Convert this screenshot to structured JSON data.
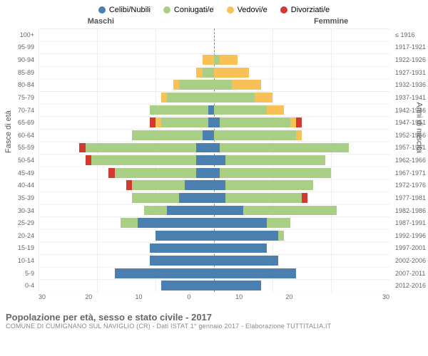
{
  "legend": [
    {
      "label": "Celibi/Nubili",
      "color": "#4a7fb0"
    },
    {
      "label": "Coniugati/e",
      "color": "#a9cf87"
    },
    {
      "label": "Vedovi/e",
      "color": "#f7c157"
    },
    {
      "label": "Divorziati/e",
      "color": "#d33a2f"
    }
  ],
  "gender_labels": {
    "male": "Maschi",
    "female": "Femmine"
  },
  "axis_titles": {
    "left": "Fasce di età",
    "right": "Anni di nascita"
  },
  "x": {
    "max": 30,
    "ticks": [
      "30",
      "20",
      "10",
      "0",
      "10",
      "20",
      "30"
    ]
  },
  "title": "Popolazione per età, sesso e stato civile - 2017",
  "subtitle": "COMUNE DI CUMIGNANO SUL NAVIGLIO (CR) - Dati ISTAT 1° gennaio 2017 - Elaborazione TUTTITALIA.IT",
  "colors": {
    "grid": "#eee",
    "centerline": "#888",
    "text": "#666",
    "bg": "#ffffff"
  },
  "rows": [
    {
      "age": "100+",
      "birth": "≤ 1916",
      "m": {
        "c": 0,
        "co": 0,
        "v": 0,
        "d": 0
      },
      "f": {
        "c": 0,
        "co": 0,
        "v": 0,
        "d": 0
      }
    },
    {
      "age": "95-99",
      "birth": "1917-1921",
      "m": {
        "c": 0,
        "co": 0,
        "v": 0,
        "d": 0
      },
      "f": {
        "c": 0,
        "co": 0,
        "v": 0,
        "d": 0
      }
    },
    {
      "age": "90-94",
      "birth": "1922-1926",
      "m": {
        "c": 0,
        "co": 0,
        "v": 2,
        "d": 0
      },
      "f": {
        "c": 0,
        "co": 1,
        "v": 3,
        "d": 0
      }
    },
    {
      "age": "85-89",
      "birth": "1927-1931",
      "m": {
        "c": 0,
        "co": 2,
        "v": 1,
        "d": 0
      },
      "f": {
        "c": 0,
        "co": 0,
        "v": 6,
        "d": 0
      }
    },
    {
      "age": "80-84",
      "birth": "1932-1936",
      "m": {
        "c": 0,
        "co": 6,
        "v": 1,
        "d": 0
      },
      "f": {
        "c": 0,
        "co": 3,
        "v": 5,
        "d": 0
      }
    },
    {
      "age": "75-79",
      "birth": "1937-1941",
      "m": {
        "c": 0,
        "co": 8,
        "v": 1,
        "d": 0
      },
      "f": {
        "c": 0,
        "co": 7,
        "v": 3,
        "d": 0
      }
    },
    {
      "age": "70-74",
      "birth": "1942-1946",
      "m": {
        "c": 1,
        "co": 10,
        "v": 0,
        "d": 0
      },
      "f": {
        "c": 0,
        "co": 9,
        "v": 3,
        "d": 0
      }
    },
    {
      "age": "65-69",
      "birth": "1947-1951",
      "m": {
        "c": 1,
        "co": 8,
        "v": 1,
        "d": 1
      },
      "f": {
        "c": 1,
        "co": 12,
        "v": 1,
        "d": 1
      }
    },
    {
      "age": "60-64",
      "birth": "1952-1956",
      "m": {
        "c": 2,
        "co": 12,
        "v": 0,
        "d": 0
      },
      "f": {
        "c": 0,
        "co": 14,
        "v": 1,
        "d": 0
      }
    },
    {
      "age": "55-59",
      "birth": "1957-1961",
      "m": {
        "c": 3,
        "co": 19,
        "v": 0,
        "d": 1
      },
      "f": {
        "c": 1,
        "co": 22,
        "v": 0,
        "d": 0
      }
    },
    {
      "age": "50-54",
      "birth": "1962-1966",
      "m": {
        "c": 3,
        "co": 18,
        "v": 0,
        "d": 1
      },
      "f": {
        "c": 2,
        "co": 17,
        "v": 0,
        "d": 0
      }
    },
    {
      "age": "45-49",
      "birth": "1967-1971",
      "m": {
        "c": 3,
        "co": 14,
        "v": 0,
        "d": 1
      },
      "f": {
        "c": 1,
        "co": 19,
        "v": 0,
        "d": 0
      }
    },
    {
      "age": "40-44",
      "birth": "1972-1976",
      "m": {
        "c": 5,
        "co": 9,
        "v": 0,
        "d": 1
      },
      "f": {
        "c": 2,
        "co": 15,
        "v": 0,
        "d": 0
      }
    },
    {
      "age": "35-39",
      "birth": "1977-1981",
      "m": {
        "c": 6,
        "co": 8,
        "v": 0,
        "d": 0
      },
      "f": {
        "c": 2,
        "co": 13,
        "v": 0,
        "d": 1
      }
    },
    {
      "age": "30-34",
      "birth": "1982-1986",
      "m": {
        "c": 8,
        "co": 4,
        "v": 0,
        "d": 0
      },
      "f": {
        "c": 5,
        "co": 16,
        "v": 0,
        "d": 0
      }
    },
    {
      "age": "25-29",
      "birth": "1987-1991",
      "m": {
        "c": 13,
        "co": 3,
        "v": 0,
        "d": 0
      },
      "f": {
        "c": 9,
        "co": 4,
        "v": 0,
        "d": 0
      }
    },
    {
      "age": "20-24",
      "birth": "1992-1996",
      "m": {
        "c": 10,
        "co": 0,
        "v": 0,
        "d": 0
      },
      "f": {
        "c": 11,
        "co": 1,
        "v": 0,
        "d": 0
      }
    },
    {
      "age": "15-19",
      "birth": "1997-2001",
      "m": {
        "c": 11,
        "co": 0,
        "v": 0,
        "d": 0
      },
      "f": {
        "c": 9,
        "co": 0,
        "v": 0,
        "d": 0
      }
    },
    {
      "age": "10-14",
      "birth": "2002-2006",
      "m": {
        "c": 11,
        "co": 0,
        "v": 0,
        "d": 0
      },
      "f": {
        "c": 11,
        "co": 0,
        "v": 0,
        "d": 0
      }
    },
    {
      "age": "5-9",
      "birth": "2007-2011",
      "m": {
        "c": 17,
        "co": 0,
        "v": 0,
        "d": 0
      },
      "f": {
        "c": 14,
        "co": 0,
        "v": 0,
        "d": 0
      }
    },
    {
      "age": "0-4",
      "birth": "2012-2016",
      "m": {
        "c": 9,
        "co": 0,
        "v": 0,
        "d": 0
      },
      "f": {
        "c": 8,
        "co": 0,
        "v": 0,
        "d": 0
      }
    }
  ],
  "series_map": {
    "c": 0,
    "co": 1,
    "v": 2,
    "d": 3
  }
}
